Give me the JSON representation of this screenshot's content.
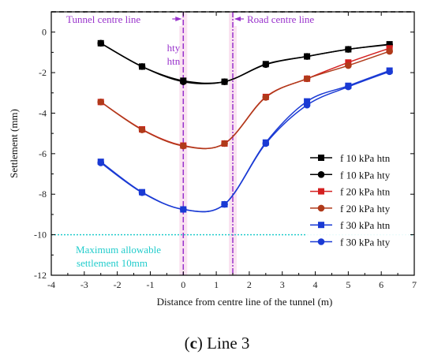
{
  "chart_data": {
    "type": "line",
    "xlabel": "Distance from centre line of the tunnel (m)",
    "ylabel": "Settlement (mm)",
    "xlim": [
      -4,
      7
    ],
    "ylim": [
      -12,
      1
    ],
    "xticks": [
      -4,
      -3,
      -2,
      -1,
      0,
      1,
      2,
      3,
      4,
      5,
      6,
      7
    ],
    "yticks": [
      0,
      -2,
      -4,
      -6,
      -8,
      -10,
      -12
    ],
    "grid": false,
    "legend_position": "bottom-right",
    "x": [
      -2.5,
      -1.25,
      0,
      1.25,
      2.5,
      3.75,
      5,
      6.25
    ],
    "series": [
      {
        "name": "f 10 kPa htn",
        "color": "#000000",
        "marker": "square",
        "values": [
          -0.55,
          -1.7,
          -2.4,
          -2.45,
          -1.58,
          -1.2,
          -0.85,
          -0.6
        ]
      },
      {
        "name": "f 10 kPa hty",
        "color": "#000000",
        "marker": "circle",
        "values": [
          -0.55,
          -1.7,
          -2.45,
          -2.45,
          -1.6,
          -1.2,
          -0.85,
          -0.62
        ]
      },
      {
        "name": "f 20 kPa htn",
        "color": "#d42020",
        "marker": "square",
        "values": [
          -3.45,
          -4.8,
          -5.6,
          -5.5,
          -3.2,
          -2.3,
          -1.5,
          -0.8
        ]
      },
      {
        "name": "f 20 kPa hty",
        "color": "#b03a1a",
        "marker": "circle",
        "values": [
          -3.45,
          -4.82,
          -5.62,
          -5.5,
          -3.22,
          -2.3,
          -1.65,
          -0.95
        ]
      },
      {
        "name": "f 30 kPa htn",
        "color": "#1a3ad4",
        "marker": "square",
        "values": [
          -6.4,
          -7.9,
          -8.75,
          -8.5,
          -5.45,
          -3.42,
          -2.65,
          -1.9
        ]
      },
      {
        "name": "f 30 kPa hty",
        "color": "#1a3ad4",
        "marker": "circle",
        "values": [
          -6.45,
          -7.92,
          -8.75,
          -8.5,
          -5.5,
          -3.6,
          -2.7,
          -1.95
        ]
      }
    ],
    "reference_lines": {
      "zero_y": 1,
      "tunnel_centre_x": 0,
      "road_centre_x": 1.5,
      "allowable_y": -10
    },
    "annotations": {
      "tunnel_centre": "Tunnel centre line",
      "road_centre": "Road centre line",
      "hty": "hty",
      "htn": "htn",
      "allowable_line1": "Maximum allowable",
      "allowable_line2": "settlement  10mm"
    },
    "colors": {
      "centre_lines": "#9933cc",
      "allowable": "#22cccc",
      "highlight": "#f5c0e0"
    }
  },
  "caption": {
    "bold": "c",
    "open": "(",
    "close": ")",
    "rest": " Line 3"
  }
}
